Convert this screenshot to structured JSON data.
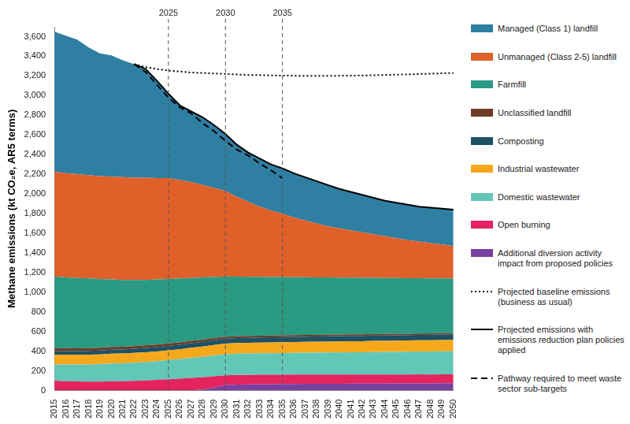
{
  "chart_data": {
    "type": "area",
    "y_label": "Methane emissions (kt CO₂e, AR5 terms)",
    "categories": [
      "2015",
      "2016",
      "2017",
      "2018",
      "2019",
      "2020",
      "2021",
      "2022",
      "2023",
      "2024",
      "2025",
      "2026",
      "2027",
      "2028",
      "2029",
      "2030",
      "2031",
      "2032",
      "2033",
      "2034",
      "2035",
      "2036",
      "2037",
      "2038",
      "2039",
      "2040",
      "2041",
      "2042",
      "2043",
      "2044",
      "2045",
      "2046",
      "2047",
      "2048",
      "2049",
      "2050"
    ],
    "stacked": true,
    "grid": false,
    "legend": "right",
    "ylim": [
      0,
      3700
    ],
    "yticks": [
      0,
      200,
      400,
      600,
      800,
      {
        "value": 1000,
        "label": "1,000"
      },
      {
        "value": 1200,
        "label": "1,200"
      },
      {
        "value": 1400,
        "label": "1,400"
      },
      {
        "value": 1600,
        "label": "1,600"
      },
      {
        "value": 1800,
        "label": "1,800"
      },
      {
        "value": 2000,
        "label": "2,000"
      },
      {
        "value": 2200,
        "label": "2,200"
      },
      {
        "value": 2400,
        "label": "2,400"
      },
      {
        "value": 2600,
        "label": "2,600"
      },
      {
        "value": 2800,
        "label": "2,800"
      },
      {
        "value": 3000,
        "label": "3,000"
      },
      {
        "value": 3200,
        "label": "3,200"
      },
      {
        "value": 3400,
        "label": "3,400"
      },
      {
        "value": 3600,
        "label": "3,600"
      }
    ],
    "annotations": [
      "2025",
      "2030",
      "2035"
    ],
    "series": [
      {
        "name": "Managed (Class 1) landfill",
        "type": "area",
        "color": "#2f7fa3",
        "values": [
          1425,
          1400,
          1370,
          1300,
          1250,
          1235,
          1190,
          1155,
          1095,
          990,
          860,
          760,
          720,
          690,
          640,
          580,
          530,
          500,
          490,
          470,
          460,
          450,
          440,
          430,
          420,
          400,
          390,
          380,
          370,
          360,
          360,
          360,
          355,
          360,
          365,
          370
        ]
      },
      {
        "name": "Unmanaged (Class 2-5) landfill",
        "type": "area",
        "color": "#e0602a",
        "values": [
          1065,
          1060,
          1055,
          1050,
          1045,
          1045,
          1045,
          1040,
          1040,
          1030,
          1025,
          1000,
          975,
          940,
          905,
          870,
          812,
          763,
          714,
          675,
          646,
          607,
          578,
          549,
          520,
          501,
          482,
          463,
          444,
          425,
          406,
          387,
          373,
          359,
          345,
          332
        ]
      },
      {
        "name": "Farmfill",
        "type": "area",
        "color": "#2b9a82",
        "values": [
          730,
          719,
          715,
          708,
          700,
          687,
          680,
          673,
          666,
          662,
          655,
          650,
          640,
          633,
          622,
          612,
          606,
          602,
          599,
          596,
          593,
          590,
          587,
          585,
          583,
          580,
          577,
          576,
          572,
          570,
          567,
          565,
          562,
          560,
          556,
          553
        ]
      },
      {
        "name": "Unclassified landfill",
        "type": "area",
        "color": "#6e3b28",
        "values": [
          30,
          30,
          29,
          29,
          28,
          28,
          27,
          27,
          26,
          26,
          25,
          24,
          23,
          22,
          21,
          20,
          19,
          19,
          18,
          18,
          18,
          17,
          17,
          17,
          16,
          16,
          16,
          15,
          15,
          15,
          15,
          14,
          14,
          14,
          14,
          14
        ]
      },
      {
        "name": "Composting",
        "type": "area",
        "color": "#1d5166",
        "values": [
          35,
          36,
          37,
          38,
          39,
          40,
          41,
          42,
          43,
          44,
          45,
          46,
          47,
          48,
          49,
          50,
          50,
          50,
          51,
          51,
          51,
          52,
          52,
          52,
          53,
          53,
          53,
          54,
          54,
          54,
          55,
          55,
          55,
          56,
          56,
          56
        ]
      },
      {
        "name": "Industrial wastewater",
        "type": "area",
        "color": "#f6a81c",
        "values": [
          100,
          100,
          100,
          100,
          100,
          100,
          100,
          100,
          100,
          100,
          100,
          100,
          102,
          104,
          106,
          108,
          108,
          109,
          109,
          110,
          110,
          110,
          111,
          111,
          111,
          112,
          112,
          112,
          113,
          113,
          113,
          114,
          114,
          114,
          115,
          115
        ]
      },
      {
        "name": "Domestic wastewater",
        "type": "area",
        "color": "#63c7b8",
        "values": [
          165,
          170,
          172,
          175,
          178,
          180,
          182,
          185,
          188,
          190,
          195,
          200,
          205,
          208,
          212,
          215,
          217,
          218,
          219,
          220,
          221,
          222,
          223,
          224,
          225,
          226,
          227,
          228,
          229,
          230,
          231,
          232,
          233,
          234,
          235,
          236
        ]
      },
      {
        "name": "Open burning",
        "type": "area",
        "color": "#e3245e",
        "values": [
          100,
          95,
          92,
          90,
          90,
          95,
          95,
          98,
          102,
          108,
          115,
          120,
          128,
          125,
          115,
          100,
          98,
          97,
          96,
          95,
          95,
          95,
          94,
          94,
          93,
          93,
          93,
          92,
          92,
          92,
          91,
          91,
          91,
          90,
          90,
          90
        ]
      },
      {
        "name": "Additional diversion activity impact from proposed policies",
        "type": "area",
        "color": "#7b3fa0",
        "values": [
          0,
          0,
          0,
          0,
          0,
          0,
          0,
          0,
          0,
          0,
          0,
          0,
          0,
          10,
          30,
          55,
          60,
          62,
          64,
          65,
          66,
          67,
          68,
          68,
          69,
          69,
          70,
          70,
          71,
          71,
          72,
          72,
          73,
          73,
          74,
          74
        ]
      },
      {
        "name": "Projected baseline emissions (business as usual)",
        "type": "line",
        "color": "#000000",
        "line_style": "dotted",
        "values": [
          null,
          null,
          null,
          null,
          null,
          null,
          null,
          3320,
          3290,
          3270,
          3255,
          3245,
          3235,
          3230,
          3225,
          3220,
          3215,
          3210,
          3208,
          3205,
          3203,
          3202,
          3200,
          3200,
          3200,
          3202,
          3203,
          3205,
          3207,
          3210,
          3213,
          3216,
          3220,
          3223,
          3227,
          3230
        ]
      },
      {
        "name": "Projected emissions with emissions reduction plan policies applied",
        "type": "line",
        "color": "#000000",
        "line_style": "solid",
        "values": [
          null,
          null,
          null,
          null,
          null,
          null,
          null,
          3320,
          3270,
          3150,
          3020,
          2900,
          2840,
          2780,
          2700,
          2610,
          2500,
          2420,
          2360,
          2300,
          2260,
          2210,
          2170,
          2130,
          2090,
          2050,
          2020,
          1990,
          1960,
          1930,
          1910,
          1890,
          1870,
          1860,
          1850,
          1840
        ]
      },
      {
        "name": "Pathway required to meet waste sector sub-targets",
        "type": "line",
        "color": "#000000",
        "line_style": "dashed",
        "values": [
          null,
          null,
          null,
          null,
          null,
          null,
          null,
          3320,
          3240,
          3110,
          2980,
          2880,
          2820,
          2720,
          2640,
          2540,
          2450,
          2390,
          2310,
          2240,
          2160,
          null,
          null,
          null,
          null,
          null,
          null,
          null,
          null,
          null,
          null,
          null,
          null,
          null,
          null,
          null
        ]
      }
    ]
  }
}
